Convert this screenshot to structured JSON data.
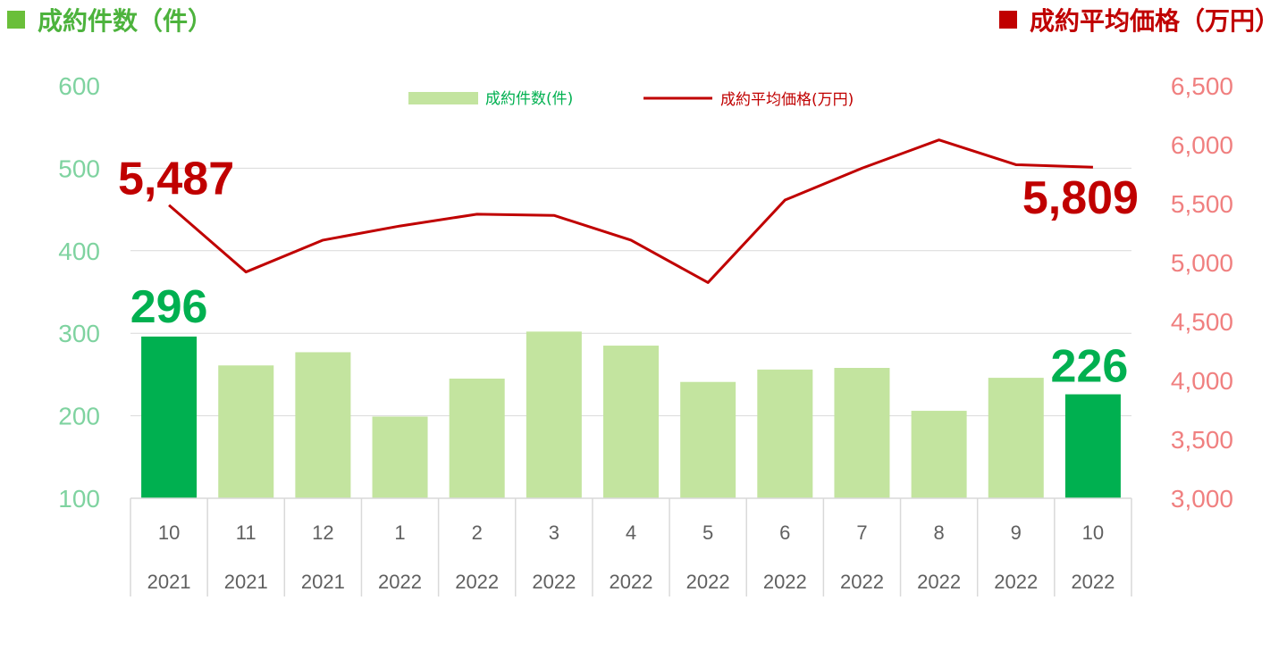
{
  "header": {
    "left_title": "成約件数（件）",
    "right_title": "成約平均価格（万円）"
  },
  "colors": {
    "bar_highlight": "#00b050",
    "bar_normal": "#c3e49f",
    "line": "#c00000",
    "left_axis": "#7fd3a0",
    "right_axis": "#f08080",
    "label_green": "#00b050",
    "label_red": "#c00000"
  },
  "chart_data": {
    "type": "bar",
    "categories": [
      "10",
      "11",
      "12",
      "1",
      "2",
      "3",
      "4",
      "5",
      "6",
      "7",
      "8",
      "9",
      "10"
    ],
    "years": [
      "2021",
      "2021",
      "2021",
      "2022",
      "2022",
      "2022",
      "2022",
      "2022",
      "2022",
      "2022",
      "2022",
      "2022",
      "2022"
    ],
    "legend_position": "top-center",
    "grid": true,
    "y_left": {
      "ylim": [
        100,
        600
      ],
      "ticks": [
        "600",
        "500",
        "400",
        "300",
        "200",
        "100"
      ]
    },
    "y_right": {
      "ylim": [
        3000,
        6500
      ],
      "ticks": [
        "6,500",
        "6,000",
        "5,500",
        "5,000",
        "4,500",
        "4,000",
        "3,500",
        "3,000"
      ]
    },
    "series": [
      {
        "name": "成約件数(件)",
        "type": "bar",
        "axis": "left",
        "values": [
          296,
          261,
          277,
          199,
          245,
          302,
          285,
          241,
          256,
          258,
          206,
          246,
          226
        ],
        "highlight": [
          true,
          false,
          false,
          false,
          false,
          false,
          false,
          false,
          false,
          false,
          false,
          false,
          true
        ]
      },
      {
        "name": "成約平均価格(万円)",
        "type": "line",
        "axis": "right",
        "values": [
          5487,
          4920,
          5190,
          5310,
          5410,
          5400,
          5190,
          4830,
          5530,
          5800,
          6040,
          5830,
          5809
        ]
      }
    ],
    "annotations": [
      {
        "series": 0,
        "index": 0,
        "text": "296"
      },
      {
        "series": 0,
        "index": 12,
        "text": "226"
      },
      {
        "series": 1,
        "index": 0,
        "text": "5,487"
      },
      {
        "series": 1,
        "index": 12,
        "text": "5,809"
      }
    ]
  }
}
